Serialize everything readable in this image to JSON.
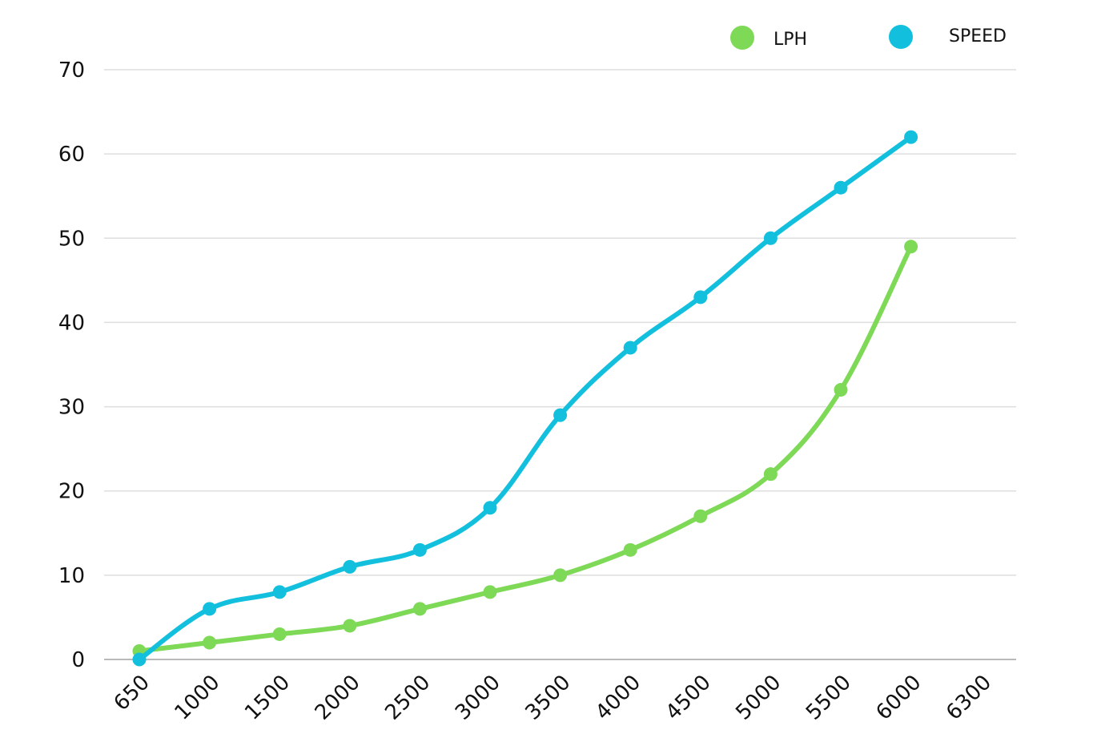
{
  "chart_data": {
    "type": "line",
    "title": "",
    "xlabel": "",
    "ylabel": "",
    "categories": [
      "650",
      "1000",
      "1500",
      "2000",
      "2500",
      "3000",
      "3500",
      "4000",
      "4500",
      "5000",
      "5500",
      "6000",
      "6300"
    ],
    "ylim": [
      0,
      70
    ],
    "yticks": [
      0,
      10,
      20,
      30,
      40,
      50,
      60,
      70
    ],
    "grid": "horizontal",
    "legend_position": "top-right",
    "series": [
      {
        "name": "LPH",
        "color": "#7ED957",
        "values": [
          1,
          2,
          3,
          4,
          6,
          8,
          10,
          13,
          17,
          22,
          32,
          49,
          null
        ]
      },
      {
        "name": "SPEED",
        "color": "#12C0DE",
        "values": [
          0,
          6,
          8,
          11,
          13,
          18,
          29,
          37,
          43,
          50,
          56,
          62,
          null
        ]
      }
    ]
  }
}
